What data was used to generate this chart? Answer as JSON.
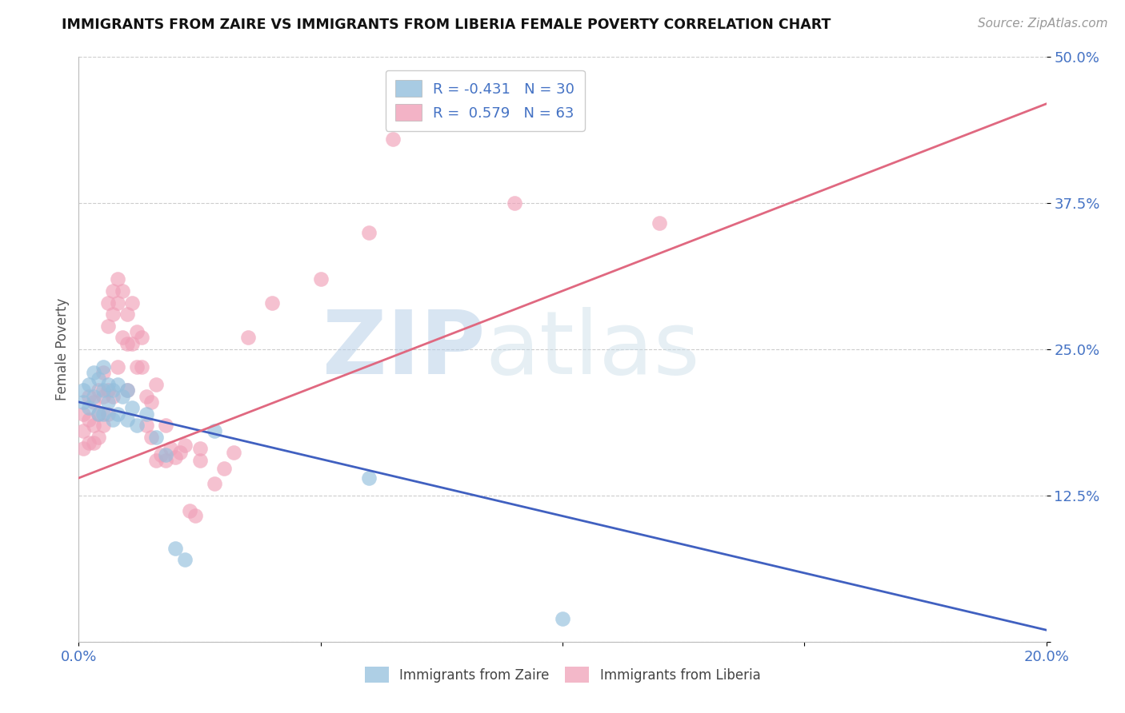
{
  "title": "IMMIGRANTS FROM ZAIRE VS IMMIGRANTS FROM LIBERIA FEMALE POVERTY CORRELATION CHART",
  "source": "Source: ZipAtlas.com",
  "ylabel": "Female Poverty",
  "x_min": 0.0,
  "x_max": 0.2,
  "y_min": 0.0,
  "y_max": 0.5,
  "yticks": [
    0.0,
    0.125,
    0.25,
    0.375,
    0.5
  ],
  "ytick_labels": [
    "",
    "12.5%",
    "25.0%",
    "37.5%",
    "50.0%"
  ],
  "xticks": [
    0.0,
    0.05,
    0.1,
    0.15,
    0.2
  ],
  "xtick_labels": [
    "0.0%",
    "",
    "",
    "",
    "20.0%"
  ],
  "watermark_zip": "ZIP",
  "watermark_atlas": "atlas",
  "zaire_color": "#93bfdd",
  "liberia_color": "#f0a0b8",
  "zaire_line_color": "#4060c0",
  "liberia_line_color": "#e06880",
  "background_color": "#ffffff",
  "grid_color": "#cccccc",
  "title_color": "#111111",
  "source_color": "#999999",
  "axis_label_color": "#555555",
  "tick_label_color": "#4472c4",
  "legend_label1": "R = -0.431   N = 30",
  "legend_label2": "R =  0.579   N = 63",
  "zaire_x": [
    0.001,
    0.001,
    0.002,
    0.002,
    0.003,
    0.003,
    0.004,
    0.004,
    0.005,
    0.005,
    0.005,
    0.006,
    0.006,
    0.007,
    0.007,
    0.008,
    0.008,
    0.009,
    0.01,
    0.01,
    0.011,
    0.012,
    0.014,
    0.016,
    0.018,
    0.02,
    0.022,
    0.028,
    0.06,
    0.1
  ],
  "zaire_y": [
    0.215,
    0.205,
    0.22,
    0.2,
    0.23,
    0.21,
    0.225,
    0.195,
    0.235,
    0.215,
    0.195,
    0.22,
    0.205,
    0.215,
    0.19,
    0.22,
    0.195,
    0.21,
    0.215,
    0.19,
    0.2,
    0.185,
    0.195,
    0.175,
    0.16,
    0.08,
    0.07,
    0.18,
    0.14,
    0.02
  ],
  "liberia_x": [
    0.001,
    0.001,
    0.001,
    0.002,
    0.002,
    0.002,
    0.003,
    0.003,
    0.003,
    0.004,
    0.004,
    0.004,
    0.005,
    0.005,
    0.005,
    0.006,
    0.006,
    0.006,
    0.006,
    0.007,
    0.007,
    0.007,
    0.008,
    0.008,
    0.008,
    0.009,
    0.009,
    0.01,
    0.01,
    0.01,
    0.011,
    0.011,
    0.012,
    0.012,
    0.013,
    0.013,
    0.014,
    0.014,
    0.015,
    0.015,
    0.016,
    0.016,
    0.017,
    0.018,
    0.018,
    0.019,
    0.02,
    0.021,
    0.022,
    0.023,
    0.024,
    0.025,
    0.025,
    0.028,
    0.03,
    0.032,
    0.035,
    0.04,
    0.05,
    0.06,
    0.065,
    0.09,
    0.12
  ],
  "liberia_y": [
    0.195,
    0.18,
    0.165,
    0.21,
    0.19,
    0.17,
    0.205,
    0.185,
    0.17,
    0.215,
    0.195,
    0.175,
    0.23,
    0.21,
    0.185,
    0.29,
    0.27,
    0.215,
    0.195,
    0.3,
    0.28,
    0.21,
    0.31,
    0.29,
    0.235,
    0.3,
    0.26,
    0.28,
    0.255,
    0.215,
    0.29,
    0.255,
    0.265,
    0.235,
    0.26,
    0.235,
    0.21,
    0.185,
    0.205,
    0.175,
    0.22,
    0.155,
    0.16,
    0.185,
    0.155,
    0.165,
    0.158,
    0.162,
    0.168,
    0.112,
    0.108,
    0.165,
    0.155,
    0.135,
    0.148,
    0.162,
    0.26,
    0.29,
    0.31,
    0.35,
    0.43,
    0.375,
    0.358
  ]
}
